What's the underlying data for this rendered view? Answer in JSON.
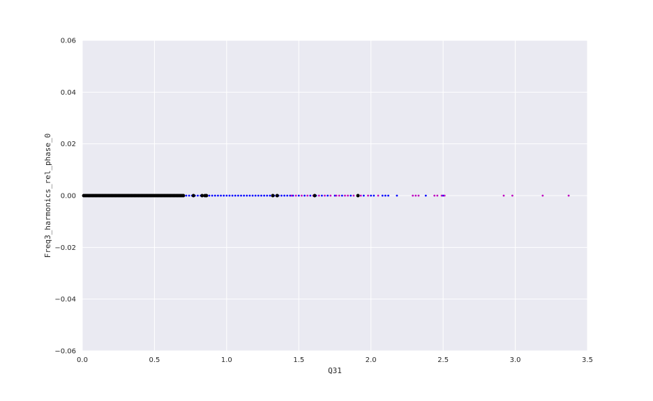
{
  "chart_data": {
    "type": "scatter",
    "title": "",
    "xlabel": "Q31",
    "ylabel": "Freq3_harmonics_rel_phase_0",
    "xlim": [
      0.0,
      3.5
    ],
    "ylim": [
      -0.06,
      0.06
    ],
    "grid": true,
    "x_ticks": [
      0.0,
      0.5,
      1.0,
      1.5,
      2.0,
      2.5,
      3.0,
      3.5
    ],
    "x_tick_labels": [
      "0.0",
      "0.5",
      "1.0",
      "1.5",
      "2.0",
      "2.5",
      "3.0",
      "3.5"
    ],
    "y_ticks": [
      -0.06,
      -0.04,
      -0.02,
      0.0,
      0.02,
      0.04,
      0.06
    ],
    "y_tick_labels": [
      "−0.06",
      "−0.04",
      "−0.02",
      "0.00",
      "0.02",
      "0.04",
      "0.06"
    ],
    "colors": {
      "background": "#eaeaf2",
      "grid": "#ffffff",
      "series_black": "#000000",
      "series_blue": "#0000ff",
      "series_magenta": "#bf00bf"
    },
    "series": [
      {
        "color": "#000000",
        "marker_size": 2.5,
        "x": [
          0.01,
          0.02,
          0.03,
          0.04,
          0.05,
          0.06,
          0.07,
          0.08,
          0.09,
          0.1,
          0.11,
          0.12,
          0.13,
          0.14,
          0.15,
          0.16,
          0.17,
          0.18,
          0.19,
          0.2,
          0.21,
          0.22,
          0.23,
          0.24,
          0.25,
          0.26,
          0.27,
          0.28,
          0.29,
          0.3,
          0.31,
          0.32,
          0.33,
          0.34,
          0.35,
          0.36,
          0.37,
          0.38,
          0.39,
          0.4,
          0.41,
          0.42,
          0.43,
          0.44,
          0.45,
          0.46,
          0.47,
          0.48,
          0.49,
          0.5,
          0.51,
          0.52,
          0.53,
          0.54,
          0.55,
          0.56,
          0.57,
          0.58,
          0.59,
          0.6,
          0.61,
          0.62,
          0.63,
          0.64,
          0.65,
          0.66,
          0.67,
          0.68,
          0.69,
          0.7,
          0.77,
          0.83,
          0.85,
          0.86,
          1.32,
          1.35,
          1.61,
          1.91
        ],
        "y": [
          0,
          0,
          0,
          0,
          0,
          0,
          0,
          0,
          0,
          0,
          0,
          0,
          0,
          0,
          0,
          0,
          0,
          0,
          0,
          0,
          0,
          0,
          0,
          0,
          0,
          0,
          0,
          0,
          0,
          0,
          0,
          0,
          0,
          0,
          0,
          0,
          0,
          0,
          0,
          0,
          0,
          0,
          0,
          0,
          0,
          0,
          0,
          0,
          0,
          0,
          0,
          0,
          0,
          0,
          0,
          0,
          0,
          0,
          0,
          0,
          0,
          0,
          0,
          0,
          0,
          0,
          0,
          0,
          0,
          0,
          0,
          0,
          0,
          0,
          0,
          0,
          0,
          0
        ]
      },
      {
        "color": "#0000ff",
        "marker_size": 1.4,
        "x": [
          0.7,
          0.72,
          0.74,
          0.76,
          0.78,
          0.8,
          0.82,
          0.84,
          0.86,
          0.88,
          0.9,
          0.92,
          0.94,
          0.96,
          0.98,
          1.0,
          1.02,
          1.04,
          1.06,
          1.08,
          1.1,
          1.12,
          1.14,
          1.16,
          1.18,
          1.2,
          1.22,
          1.24,
          1.26,
          1.28,
          1.3,
          1.33,
          1.36,
          1.38,
          1.4,
          1.42,
          1.44,
          1.46,
          1.5,
          1.54,
          1.58,
          1.62,
          1.66,
          1.7,
          1.75,
          1.8,
          1.86,
          1.95,
          2.0,
          2.02,
          2.08,
          2.1,
          2.12,
          2.18,
          2.38,
          2.5
        ],
        "y": [
          0,
          0,
          0,
          0,
          0,
          0,
          0,
          0,
          0,
          0,
          0,
          0,
          0,
          0,
          0,
          0,
          0,
          0,
          0,
          0,
          0,
          0,
          0,
          0,
          0,
          0,
          0,
          0,
          0,
          0,
          0,
          0,
          0,
          0,
          0,
          0,
          0,
          0,
          0,
          0,
          0,
          0,
          0,
          0,
          0,
          0,
          0,
          0,
          0,
          0,
          0,
          0,
          0,
          0,
          0,
          0
        ]
      },
      {
        "color": "#bf00bf",
        "marker_size": 1.4,
        "x": [
          1.45,
          1.48,
          1.52,
          1.56,
          1.6,
          1.64,
          1.68,
          1.72,
          1.76,
          1.78,
          1.82,
          1.84,
          1.88,
          1.93,
          1.98,
          2.05,
          2.29,
          2.31,
          2.33,
          2.44,
          2.46,
          2.49,
          2.51,
          2.92,
          2.98,
          3.19,
          3.37
        ],
        "y": [
          0,
          0,
          0,
          0,
          0,
          0,
          0,
          0,
          0,
          0,
          0,
          0,
          0,
          0,
          0,
          0,
          0,
          0,
          0,
          0,
          0,
          0,
          0,
          0,
          0,
          0,
          0
        ]
      }
    ]
  }
}
